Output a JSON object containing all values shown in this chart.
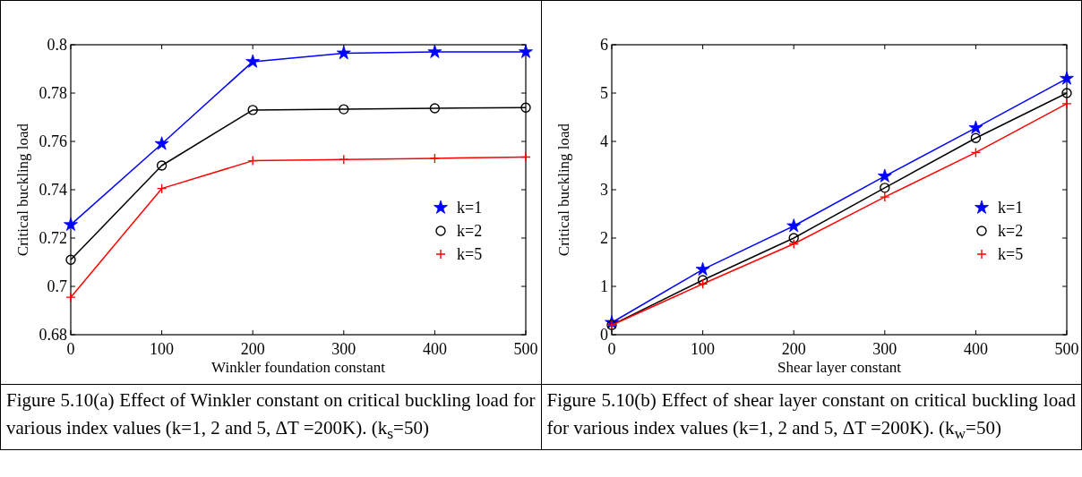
{
  "chart_data": [
    {
      "type": "line",
      "xlabel": "Winkler foundation constant",
      "ylabel": "Critical buckling load",
      "x": [
        0,
        100,
        200,
        300,
        400,
        500
      ],
      "xlim": [
        0,
        500
      ],
      "xticks": [
        0,
        100,
        200,
        300,
        400,
        500
      ],
      "ylim": [
        0.68,
        0.8
      ],
      "yticks": [
        0.68,
        0.7,
        0.72,
        0.74,
        0.76,
        0.78,
        0.8
      ],
      "grid": false,
      "legend": "right",
      "line_style": "solid",
      "series": [
        {
          "name": "k=1",
          "color": "#0000ff",
          "marker": "star",
          "values": [
            0.7255,
            0.759,
            0.793,
            0.7965,
            0.797,
            0.797
          ]
        },
        {
          "name": "k=2",
          "color": "#000000",
          "marker": "circle",
          "values": [
            0.711,
            0.75,
            0.773,
            0.7733,
            0.7737,
            0.774
          ]
        },
        {
          "name": "k=5",
          "color": "#ff0000",
          "marker": "cross",
          "values": [
            0.6955,
            0.7405,
            0.752,
            0.7525,
            0.753,
            0.7535
          ]
        }
      ],
      "annotations": [
        "Figure 5.10(a) Effect of Winkler constant on critical buckling load for various index values (k=1, 2 and 5, ΔT =200K). (k$_{s}$=50)"
      ]
    },
    {
      "type": "line",
      "xlabel": "Shear layer constant",
      "ylabel": "Critical buckling load",
      "x": [
        0,
        100,
        200,
        300,
        400,
        500
      ],
      "xlim": [
        0,
        500
      ],
      "xticks": [
        0,
        100,
        200,
        300,
        400,
        500
      ],
      "ylim": [
        0,
        6
      ],
      "yticks": [
        0,
        1,
        2,
        3,
        4,
        5,
        6
      ],
      "grid": false,
      "legend": "right",
      "line_style": "solid",
      "series": [
        {
          "name": "k=1",
          "color": "#0000ff",
          "marker": "star",
          "values": [
            0.25,
            1.35,
            2.25,
            3.28,
            4.28,
            5.3
          ]
        },
        {
          "name": "k=2",
          "color": "#000000",
          "marker": "circle",
          "values": [
            0.2,
            1.13,
            2.0,
            3.04,
            4.07,
            5.0
          ]
        },
        {
          "name": "k=5",
          "color": "#ff0000",
          "marker": "cross",
          "values": [
            0.2,
            1.05,
            1.88,
            2.85,
            3.77,
            4.78
          ]
        }
      ],
      "annotations": [
        "Figure 5.10(b) Effect of shear layer constant on critical buckling load for various index values (k=1, 2 and 5, ΔT =200K). (k$_{w}$=50)"
      ]
    }
  ]
}
